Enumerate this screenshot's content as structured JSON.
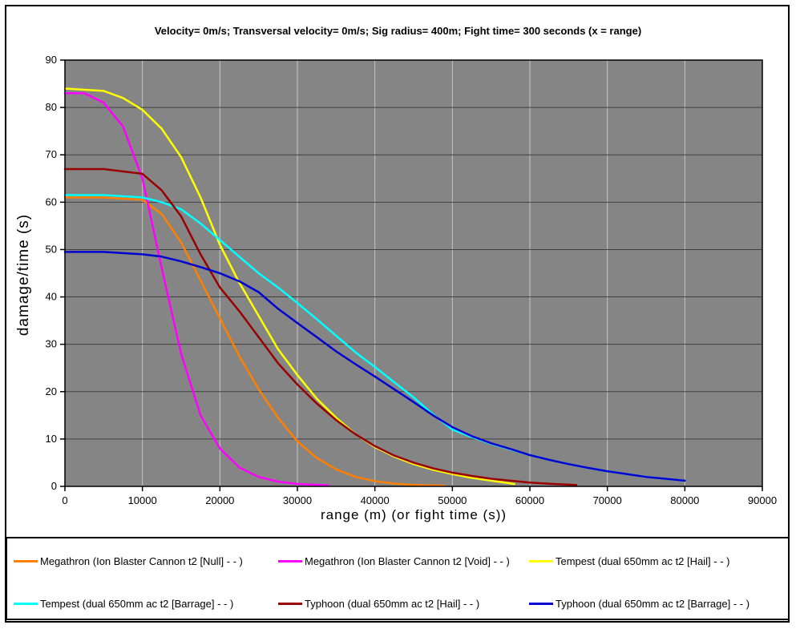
{
  "window": {
    "background": "#FFFFFF",
    "border_color": "#000000"
  },
  "layout_colors": {
    "plot_background": "#858585",
    "horizontal_gridline": "#404040",
    "vertical_gridline": "#C6C6C6",
    "axis_and_border": "#000000",
    "text": "#000000"
  },
  "chart_data": {
    "type": "line",
    "title": "Velocity= 0m/s; Transversal velocity= 0m/s; Sig radius= 400m; Fight time= 300 seconds (x = range)",
    "xlabel": "range (m) (or fight time (s))",
    "ylabel": "damage/time (s)",
    "xlim": [
      0,
      90000
    ],
    "ylim": [
      0,
      90
    ],
    "xticks": [
      0,
      10000,
      20000,
      30000,
      40000,
      50000,
      60000,
      70000,
      80000,
      90000
    ],
    "yticks": [
      0,
      10,
      20,
      30,
      40,
      50,
      60,
      70,
      80,
      90
    ],
    "grid": "on",
    "legend_position": "bottom",
    "series": [
      {
        "name": "Megathron (Ion Blaster Cannon t2 [Null] - - )",
        "color": "#FF8000",
        "points": [
          [
            0,
            61
          ],
          [
            5000,
            61
          ],
          [
            10000,
            60.5
          ],
          [
            12500,
            57.5
          ],
          [
            15000,
            51.5
          ],
          [
            17500,
            43.5
          ],
          [
            20000,
            35.5
          ],
          [
            22500,
            27.5
          ],
          [
            25000,
            20.5
          ],
          [
            27500,
            14.5
          ],
          [
            30000,
            9.5
          ],
          [
            32500,
            6
          ],
          [
            35000,
            3.6
          ],
          [
            37500,
            2
          ],
          [
            40000,
            1.1
          ],
          [
            42500,
            0.6
          ],
          [
            45000,
            0.3
          ],
          [
            49000,
            0.15
          ]
        ]
      },
      {
        "name": "Megathron (Ion Blaster Cannon t2 [Void] - - )",
        "color": "#FF00FF",
        "points": [
          [
            0,
            83
          ],
          [
            2500,
            83
          ],
          [
            5000,
            81
          ],
          [
            7500,
            76
          ],
          [
            10000,
            65
          ],
          [
            12500,
            46
          ],
          [
            15000,
            28
          ],
          [
            17500,
            15
          ],
          [
            20000,
            8
          ],
          [
            22500,
            4
          ],
          [
            25000,
            2
          ],
          [
            27500,
            1
          ],
          [
            30000,
            0.5
          ],
          [
            34000,
            0.2
          ]
        ]
      },
      {
        "name": "Tempest (dual 650mm ac t2 [Hail] - - )",
        "color": "#FFFF00",
        "points": [
          [
            0,
            84
          ],
          [
            5000,
            83.5
          ],
          [
            7500,
            82
          ],
          [
            10000,
            79.5
          ],
          [
            12500,
            75.5
          ],
          [
            15000,
            69.5
          ],
          [
            17500,
            61
          ],
          [
            20000,
            51
          ],
          [
            22500,
            43
          ],
          [
            25000,
            36
          ],
          [
            27500,
            29
          ],
          [
            30000,
            23.5
          ],
          [
            32500,
            18.5
          ],
          [
            35000,
            14.5
          ],
          [
            37500,
            11
          ],
          [
            40000,
            8.3
          ],
          [
            42500,
            6.3
          ],
          [
            45000,
            4.7
          ],
          [
            47500,
            3.5
          ],
          [
            50000,
            2.6
          ],
          [
            52500,
            1.8
          ],
          [
            55000,
            1.2
          ],
          [
            58000,
            0.5
          ]
        ]
      },
      {
        "name": "Tempest (dual 650mm ac t2 [Barrage] - - )",
        "color": "#00FFFF",
        "points": [
          [
            0,
            61.5
          ],
          [
            5000,
            61.5
          ],
          [
            10000,
            61
          ],
          [
            12500,
            60
          ],
          [
            15000,
            58.5
          ],
          [
            17500,
            55.5
          ],
          [
            20000,
            52
          ],
          [
            22500,
            48.5
          ],
          [
            25000,
            45
          ],
          [
            27500,
            42
          ],
          [
            30000,
            38.7
          ],
          [
            32500,
            35.3
          ],
          [
            35000,
            31.8
          ],
          [
            37500,
            28.3
          ],
          [
            40000,
            25.2
          ],
          [
            42500,
            22
          ],
          [
            45000,
            18.8
          ],
          [
            47500,
            15.2
          ],
          [
            50000,
            12
          ],
          [
            52500,
            10.4
          ],
          [
            55000,
            9
          ],
          [
            57500,
            7.8
          ],
          [
            60000,
            6.6
          ],
          [
            62500,
            5.6
          ],
          [
            65000,
            4.7
          ],
          [
            67500,
            3.9
          ],
          [
            70000,
            3.2
          ],
          [
            72500,
            2.6
          ],
          [
            75000,
            2
          ],
          [
            77500,
            1.6
          ],
          [
            80000,
            1.2
          ]
        ]
      },
      {
        "name": "Typhoon (dual 650mm ac t2 [Hail] - - )",
        "color": "#990000",
        "points": [
          [
            0,
            67
          ],
          [
            5000,
            67
          ],
          [
            10000,
            66
          ],
          [
            12500,
            62.5
          ],
          [
            15000,
            57
          ],
          [
            17500,
            49
          ],
          [
            20000,
            42
          ],
          [
            22500,
            37
          ],
          [
            25000,
            31.5
          ],
          [
            27500,
            26
          ],
          [
            30000,
            21.5
          ],
          [
            32500,
            17.5
          ],
          [
            35000,
            14
          ],
          [
            37500,
            11
          ],
          [
            40000,
            8.5
          ],
          [
            42500,
            6.5
          ],
          [
            45000,
            5
          ],
          [
            47500,
            3.8
          ],
          [
            50000,
            2.9
          ],
          [
            52500,
            2.2
          ],
          [
            55000,
            1.6
          ],
          [
            57500,
            1.2
          ],
          [
            60000,
            0.8
          ],
          [
            63000,
            0.5
          ],
          [
            66000,
            0.3
          ]
        ]
      },
      {
        "name": "Typhoon (dual 650mm ac t2 [Barrage] - - )",
        "color": "#0000D0",
        "points": [
          [
            0,
            49.5
          ],
          [
            5000,
            49.5
          ],
          [
            10000,
            49
          ],
          [
            12500,
            48.5
          ],
          [
            15000,
            47.5
          ],
          [
            17500,
            46.3
          ],
          [
            20000,
            45
          ],
          [
            22500,
            43.3
          ],
          [
            25000,
            41
          ],
          [
            27500,
            37.5
          ],
          [
            30000,
            34.5
          ],
          [
            32500,
            31.5
          ],
          [
            35000,
            28.5
          ],
          [
            37500,
            25.8
          ],
          [
            40000,
            23.2
          ],
          [
            42500,
            20.5
          ],
          [
            45000,
            17.8
          ],
          [
            47500,
            15
          ],
          [
            50000,
            12.5
          ],
          [
            52500,
            10.6
          ],
          [
            55000,
            9.1
          ],
          [
            57500,
            7.9
          ],
          [
            60000,
            6.6
          ],
          [
            62500,
            5.6
          ],
          [
            65000,
            4.7
          ],
          [
            67500,
            3.9
          ],
          [
            70000,
            3.2
          ],
          [
            72500,
            2.6
          ],
          [
            75000,
            2
          ],
          [
            77500,
            1.6
          ],
          [
            80000,
            1.2
          ]
        ]
      }
    ]
  },
  "legend": {
    "items": [
      {
        "label": "Megathron (Ion Blaster Cannon t2 [Null] - - )",
        "color": "#FF8000"
      },
      {
        "label": "Megathron (Ion Blaster Cannon t2 [Void] - - )",
        "color": "#FF00FF"
      },
      {
        "label": "Tempest (dual 650mm ac t2 [Hail] - - )",
        "color": "#FFFF00"
      },
      {
        "label": "Tempest (dual 650mm ac t2 [Barrage] - - )",
        "color": "#00FFFF"
      },
      {
        "label": "Typhoon (dual 650mm ac t2 [Hail] - - )",
        "color": "#990000"
      },
      {
        "label": "Typhoon (dual 650mm ac t2 [Barrage] - - )",
        "color": "#0000D0"
      }
    ]
  }
}
